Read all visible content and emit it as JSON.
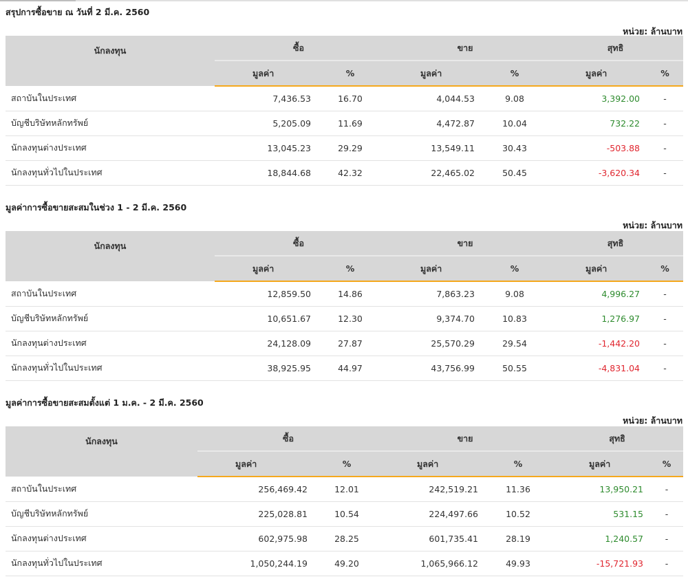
{
  "common": {
    "unit": "หน่วย: ล้านบาท",
    "headers": {
      "investor": "นักลงทุน",
      "buy": "ซื้อ",
      "sell": "ขาย",
      "net": "สุทธิ",
      "value": "มูลค่า",
      "pct": "%"
    }
  },
  "colors": {
    "positive": "#2e8b2e",
    "negative": "#e0262f",
    "accent": "#f5a81c",
    "header_bg": "#d7d7d7"
  },
  "sections": [
    {
      "title": "สรุปการซื้อขาย ณ วันที่ 2 มี.ค. 2560",
      "rows": [
        {
          "name": "สถาบันในประเทศ",
          "buy_value": "7,436.53",
          "buy_pct": "16.70",
          "sell_value": "4,044.53",
          "sell_pct": "9.08",
          "net_value": "3,392.00",
          "net_pct": "-"
        },
        {
          "name": "บัญชีบริษัทหลักทรัพย์",
          "buy_value": "5,205.09",
          "buy_pct": "11.69",
          "sell_value": "4,472.87",
          "sell_pct": "10.04",
          "net_value": "732.22",
          "net_pct": "-"
        },
        {
          "name": "นักลงทุนต่างประเทศ",
          "buy_value": "13,045.23",
          "buy_pct": "29.29",
          "sell_value": "13,549.11",
          "sell_pct": "30.43",
          "net_value": "-503.88",
          "net_pct": "-"
        },
        {
          "name": "นักลงทุนทั่วไปในประเทศ",
          "buy_value": "18,844.68",
          "buy_pct": "42.32",
          "sell_value": "22,465.02",
          "sell_pct": "50.45",
          "net_value": "-3,620.34",
          "net_pct": "-"
        }
      ]
    },
    {
      "title": "มูลค่าการซื้อขายสะสมในช่วง 1 - 2 มี.ค. 2560",
      "rows": [
        {
          "name": "สถาบันในประเทศ",
          "buy_value": "12,859.50",
          "buy_pct": "14.86",
          "sell_value": "7,863.23",
          "sell_pct": "9.08",
          "net_value": "4,996.27",
          "net_pct": "-"
        },
        {
          "name": "บัญชีบริษัทหลักทรัพย์",
          "buy_value": "10,651.67",
          "buy_pct": "12.30",
          "sell_value": "9,374.70",
          "sell_pct": "10.83",
          "net_value": "1,276.97",
          "net_pct": "-"
        },
        {
          "name": "นักลงทุนต่างประเทศ",
          "buy_value": "24,128.09",
          "buy_pct": "27.87",
          "sell_value": "25,570.29",
          "sell_pct": "29.54",
          "net_value": "-1,442.20",
          "net_pct": "-"
        },
        {
          "name": "นักลงทุนทั่วไปในประเทศ",
          "buy_value": "38,925.95",
          "buy_pct": "44.97",
          "sell_value": "43,756.99",
          "sell_pct": "50.55",
          "net_value": "-4,831.04",
          "net_pct": "-"
        }
      ]
    },
    {
      "title": "มูลค่าการซื้อขายสะสมตั้งแต่ 1 ม.ค. - 2 มี.ค. 2560",
      "rows": [
        {
          "name": "สถาบันในประเทศ",
          "buy_value": "256,469.42",
          "buy_pct": "12.01",
          "sell_value": "242,519.21",
          "sell_pct": "11.36",
          "net_value": "13,950.21",
          "net_pct": "-"
        },
        {
          "name": "บัญชีบริษัทหลักทรัพย์",
          "buy_value": "225,028.81",
          "buy_pct": "10.54",
          "sell_value": "224,497.66",
          "sell_pct": "10.52",
          "net_value": "531.15",
          "net_pct": "-"
        },
        {
          "name": "นักลงทุนต่างประเทศ",
          "buy_value": "602,975.98",
          "buy_pct": "28.25",
          "sell_value": "601,735.41",
          "sell_pct": "28.19",
          "net_value": "1,240.57",
          "net_pct": "-"
        },
        {
          "name": "นักลงทุนทั่วไปในประเทศ",
          "buy_value": "1,050,244.19",
          "buy_pct": "49.20",
          "sell_value": "1,065,966.12",
          "sell_pct": "49.93",
          "net_value": "-15,721.93",
          "net_pct": "-"
        }
      ]
    }
  ]
}
